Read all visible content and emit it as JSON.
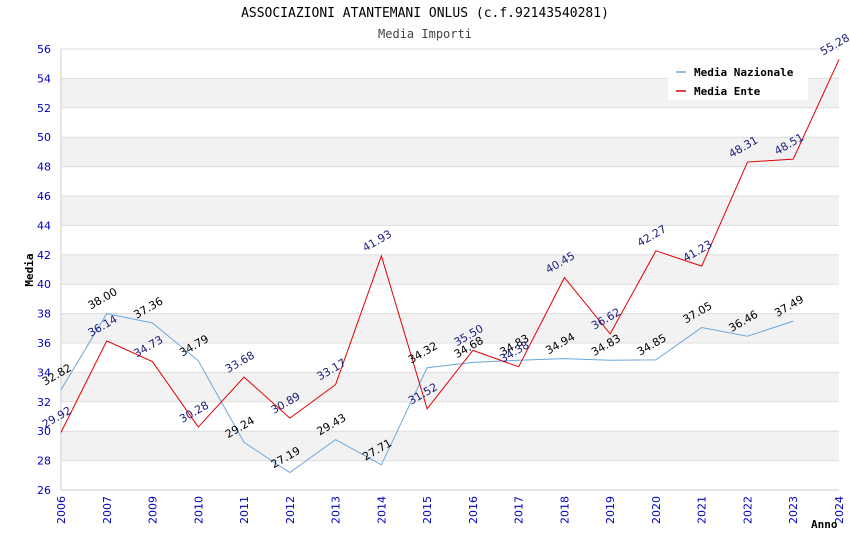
{
  "chart_data": {
    "type": "line",
    "title": "ASSOCIAZIONI ATANTEMANI ONLUS (c.f.92143540281)",
    "subtitle": "Media Importi",
    "xlabel": "Anno",
    "ylabel": "Media",
    "ylim": [
      26,
      56
    ],
    "yticks": [
      26,
      28,
      30,
      32,
      34,
      36,
      38,
      40,
      42,
      44,
      46,
      48,
      50,
      52,
      54,
      56
    ],
    "grid": true,
    "legend_position": "top-right",
    "categories": [
      "2006",
      "2007",
      "2009",
      "2010",
      "2011",
      "2012",
      "2013",
      "2014",
      "2015",
      "2016",
      "2017",
      "2018",
      "2019",
      "2020",
      "2021",
      "2022",
      "2023",
      "2024"
    ],
    "series": [
      {
        "name": "Media Nazionale",
        "color": "#6aa8e0",
        "values": [
          32.82,
          38.0,
          37.36,
          34.79,
          29.24,
          27.19,
          29.43,
          27.71,
          34.32,
          34.68,
          34.83,
          34.94,
          34.83,
          34.85,
          37.05,
          36.46,
          37.49,
          null
        ],
        "labels": [
          "32.82",
          "38.00",
          "37.36",
          "34.79",
          "29.24",
          "27.19",
          "29.43",
          "27.71",
          "34.32",
          "34.68",
          "34.83",
          "34.94",
          "34.83",
          "34.85",
          "37.05",
          "36.46",
          "37.49",
          ""
        ]
      },
      {
        "name": "Media Ente",
        "color": "#e00000",
        "values": [
          29.92,
          36.14,
          34.73,
          30.28,
          33.68,
          30.89,
          33.17,
          41.93,
          31.52,
          35.5,
          34.38,
          40.45,
          36.62,
          42.27,
          41.23,
          48.31,
          48.51,
          55.28
        ],
        "labels": [
          "29.92",
          "36.14",
          "34.73",
          "30.28",
          "33.68",
          "30.89",
          "33.17",
          "41.93",
          "31.52",
          "35.50",
          "34.38",
          "40.45",
          "36.62",
          "42.27",
          "41.23",
          "48.31",
          "48.51",
          "55.28"
        ]
      }
    ]
  }
}
